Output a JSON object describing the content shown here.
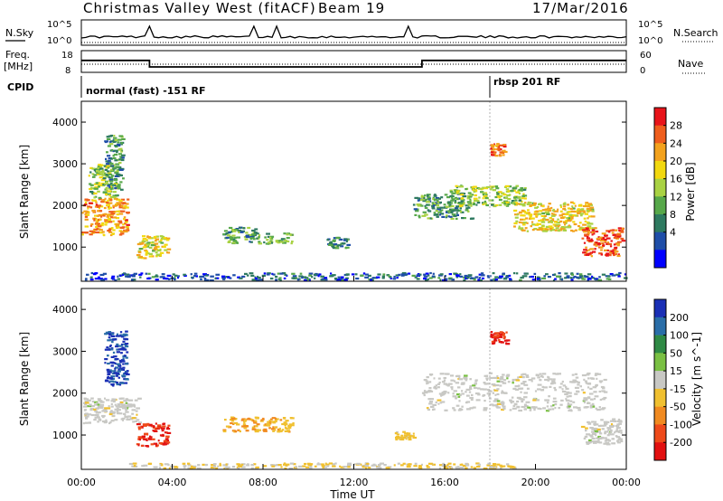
{
  "header": {
    "station": "Christmas Valley West (fitACF)",
    "beam": "Beam 19",
    "date": "17/Mar/2016"
  },
  "top_panel": {
    "left_label": "N.Sky",
    "right_label": "N.Search",
    "left_ticks": [
      "10^5",
      "10^0"
    ],
    "right_ticks": [
      "10^5",
      "10^0"
    ]
  },
  "freq_panel": {
    "left_label_1": "Freq.",
    "left_label_2": "[MHz]",
    "right_label": "Nave",
    "left_ticks": [
      "18",
      "8"
    ],
    "right_ticks": [
      "60",
      "0"
    ]
  },
  "cpid": {
    "label": "CPID",
    "segment_1": "normal (fast) -151 RF",
    "segment_2": "rbsp 201 RF"
  },
  "power_panel": {
    "ylabel": "Slant Range [km]",
    "y_ticks": [
      "4000",
      "3000",
      "2000",
      "1000"
    ],
    "colorbar_title": "Power [dB]",
    "colorbar_ticks": [
      "28",
      "24",
      "20",
      "16",
      "12",
      "8",
      "4"
    ],
    "colors": [
      "#0000ff",
      "#1f4ea8",
      "#2e7a60",
      "#57a84a",
      "#a9d243",
      "#f2d80f",
      "#f3a21d",
      "#ef5e1d",
      "#e8141a"
    ]
  },
  "velocity_panel": {
    "ylabel": "Slant Range [km]",
    "y_ticks": [
      "4000",
      "3000",
      "2000",
      "1000"
    ],
    "colorbar_title": "Velocity [m s^-1]",
    "colorbar_ticks": [
      "200",
      "100",
      "50",
      "15",
      "-15",
      "-50",
      "-100",
      "-200"
    ],
    "colors": [
      "#1a2fb5",
      "#2a6ea8",
      "#2f8a45",
      "#7ac043",
      "#c8c8c4",
      "#f0c030",
      "#f08a20",
      "#ee4a1a",
      "#e21010"
    ]
  },
  "x_axis": {
    "title": "Time UT",
    "ticks": [
      "00:00",
      "04:00",
      "08:00",
      "12:00",
      "16:00",
      "20:00",
      "00:00"
    ]
  },
  "chart_data": {
    "type": "heatmap",
    "title": "Christmas Valley West (fitACF) Beam 19 17/Mar/2016",
    "xlabel": "Time UT",
    "ylabel": "Slant Range [km]",
    "xlim_hours": [
      0,
      24
    ],
    "ylim_km": [
      180,
      4500
    ],
    "power_range_db": [
      0,
      30
    ],
    "velocity_range": [
      -250,
      250
    ],
    "mode_change_hour": 18.0,
    "freq_mhz": {
      "segments": [
        {
          "start_hour": 0,
          "end_hour": 3,
          "value": 13.5
        },
        {
          "start_hour": 3,
          "end_hour": 15,
          "value": 10.5
        },
        {
          "start_hour": 15,
          "end_hour": 24,
          "value": 13.5
        }
      ]
    },
    "power_clusters": [
      {
        "t0": 0.0,
        "t1": 2.0,
        "r0": 1300,
        "r1": 2200,
        "value": 22
      },
      {
        "t0": 0.3,
        "t1": 1.5,
        "r0": 2200,
        "r1": 3000,
        "value": 14
      },
      {
        "t0": 1.0,
        "t1": 1.8,
        "r0": 2400,
        "r1": 3700,
        "value": 10
      },
      {
        "t0": 2.4,
        "t1": 3.8,
        "r0": 750,
        "r1": 1300,
        "value": 18
      },
      {
        "t0": 6.2,
        "t1": 7.8,
        "r0": 1100,
        "r1": 1500,
        "value": 10
      },
      {
        "t0": 8.0,
        "t1": 9.3,
        "r0": 1100,
        "r1": 1350,
        "value": 12
      },
      {
        "t0": 10.8,
        "t1": 11.7,
        "r0": 1000,
        "r1": 1250,
        "value": 9
      },
      {
        "t0": 14.6,
        "t1": 17.2,
        "r0": 1700,
        "r1": 2300,
        "value": 10
      },
      {
        "t0": 16.2,
        "t1": 19.5,
        "r0": 2000,
        "r1": 2500,
        "value": 14
      },
      {
        "t0": 19.0,
        "t1": 22.5,
        "r0": 1400,
        "r1": 2100,
        "value": 18
      },
      {
        "t0": 22.0,
        "t1": 23.8,
        "r0": 800,
        "r1": 1500,
        "value": 26
      },
      {
        "t0": 18.0,
        "t1": 18.6,
        "r0": 3200,
        "r1": 3500,
        "value": 24
      },
      {
        "t0": 0.0,
        "t1": 24.0,
        "r0": 200,
        "r1": 400,
        "value": 6
      }
    ],
    "velocity_clusters": [
      {
        "t0": 0.0,
        "t1": 2.5,
        "r0": 1300,
        "r1": 1900,
        "value": 0
      },
      {
        "t0": 1.0,
        "t1": 2.0,
        "r0": 2200,
        "r1": 3500,
        "value": 200
      },
      {
        "t0": 2.4,
        "t1": 3.8,
        "r0": 750,
        "r1": 1300,
        "value": -200
      },
      {
        "t0": 6.2,
        "t1": 9.3,
        "r0": 1100,
        "r1": 1450,
        "value": -80
      },
      {
        "t0": 13.8,
        "t1": 14.6,
        "r0": 900,
        "r1": 1100,
        "value": -40
      },
      {
        "t0": 15.0,
        "t1": 23.0,
        "r0": 1600,
        "r1": 2500,
        "value": 0
      },
      {
        "t0": 18.0,
        "t1": 18.7,
        "r0": 3200,
        "r1": 3500,
        "value": -200
      },
      {
        "t0": 22.0,
        "t1": 23.8,
        "r0": 800,
        "r1": 1400,
        "value": 0
      },
      {
        "t0": 2.0,
        "t1": 19.0,
        "r0": 200,
        "r1": 350,
        "value": -30
      }
    ]
  }
}
